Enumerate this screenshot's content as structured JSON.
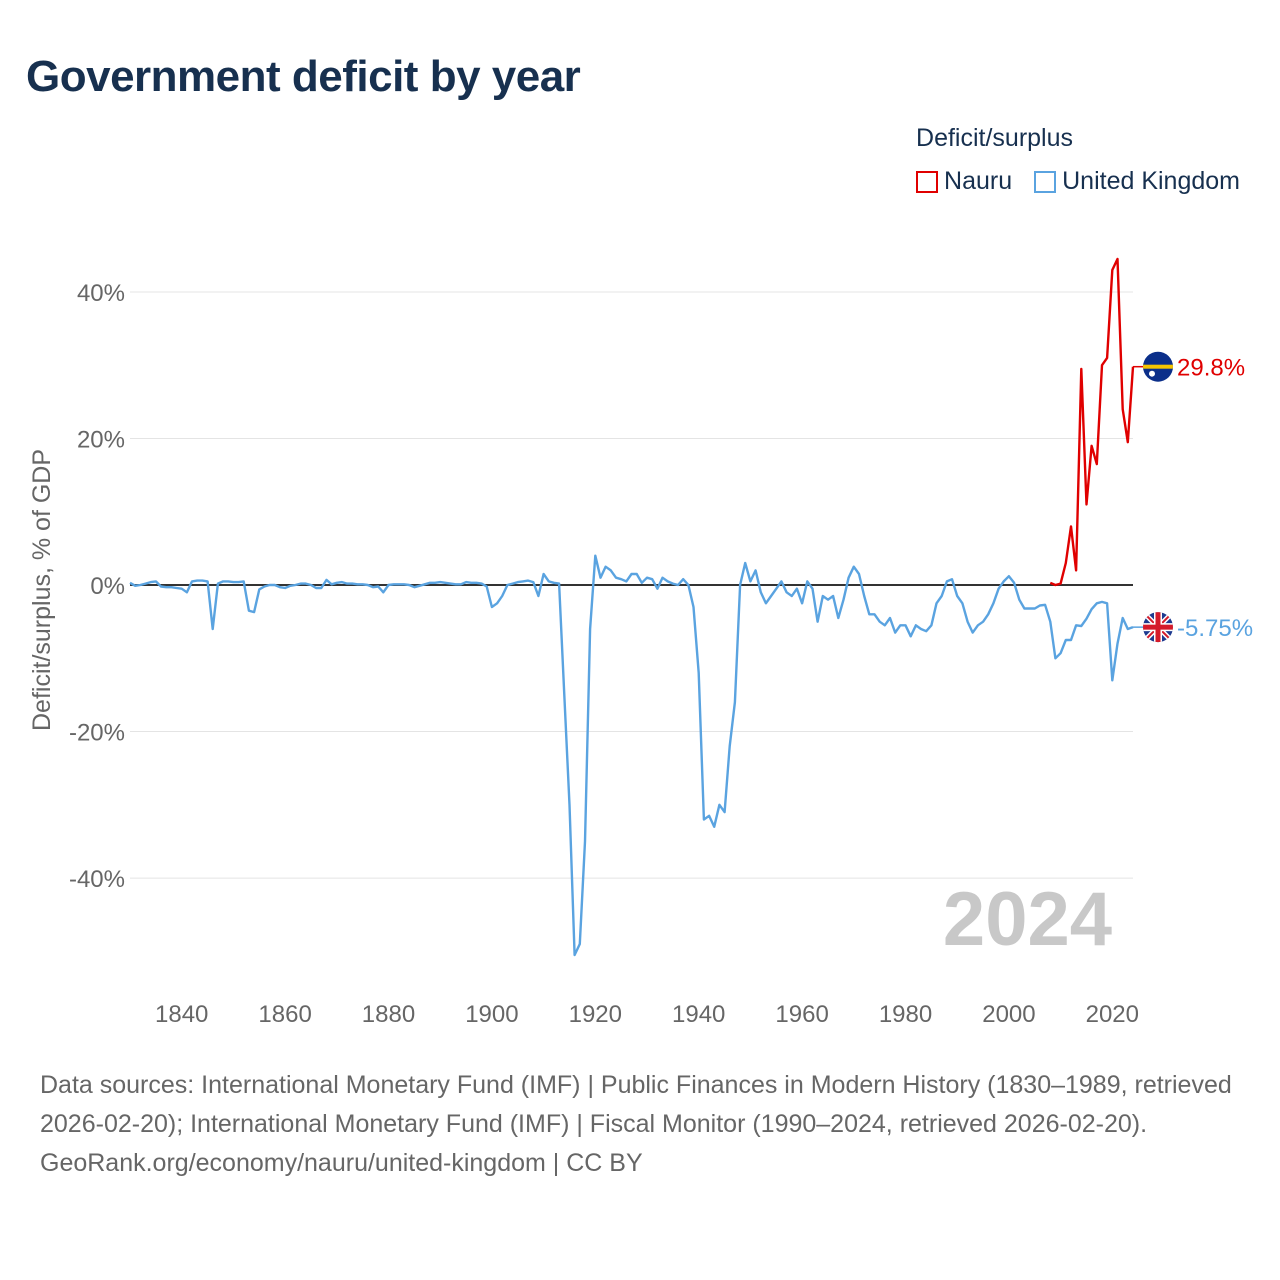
{
  "title": "Government deficit by year",
  "legend": {
    "title": "Deficit/surplus",
    "items": [
      {
        "label": "Nauru",
        "color": "#e00000"
      },
      {
        "label": "United Kingdom",
        "color": "#5aa3e0"
      }
    ]
  },
  "watermark_year": "2024",
  "footer": {
    "sources": "Data sources: International Monetary Fund (IMF) | Public Finances in Modern History (1830–1989, retrieved 2026-02-20); International Monetary Fund (IMF) | Fiscal Monitor (1990–2024, retrieved 2026-02-20).",
    "credit": "GeoRank.org/economy/nauru/united-kingdom | CC BY"
  },
  "chart_data": {
    "type": "line",
    "title": "Government deficit by year",
    "xlabel": "",
    "ylabel": "Deficit/surplus, % of GDP",
    "xlim": [
      1830,
      2024
    ],
    "ylim": [
      -52,
      46
    ],
    "x_ticks": [
      1840,
      1860,
      1880,
      1900,
      1920,
      1940,
      1960,
      1980,
      2000,
      2020
    ],
    "y_ticks": [
      40,
      20,
      0,
      -20,
      -40
    ],
    "y_tick_labels": [
      "40%",
      "20%",
      "0%",
      "-20%",
      "-40%"
    ],
    "zero_line": true,
    "grid": true,
    "series": [
      {
        "name": "Nauru",
        "color": "#e00000",
        "end_label": "29.8%",
        "points": [
          [
            2008,
            0.3
          ],
          [
            2009,
            0
          ],
          [
            2010,
            0.2
          ],
          [
            2011,
            3
          ],
          [
            2012,
            8
          ],
          [
            2013,
            2
          ],
          [
            2014,
            29.5
          ],
          [
            2015,
            11
          ],
          [
            2016,
            19
          ],
          [
            2017,
            16.5
          ],
          [
            2018,
            30
          ],
          [
            2019,
            31
          ],
          [
            2020,
            43
          ],
          [
            2021,
            44.5
          ],
          [
            2022,
            24
          ],
          [
            2023,
            19.5
          ],
          [
            2024,
            29.8
          ]
        ]
      },
      {
        "name": "United Kingdom",
        "color": "#5aa3e0",
        "end_label": "-5.75%",
        "points": [
          [
            1830,
            0.3
          ],
          [
            1831,
            -0.1
          ],
          [
            1832,
            0
          ],
          [
            1833,
            0.2
          ],
          [
            1834,
            0.4
          ],
          [
            1835,
            0.5
          ],
          [
            1836,
            -0.2
          ],
          [
            1837,
            -0.3
          ],
          [
            1838,
            -0.3
          ],
          [
            1839,
            -0.4
          ],
          [
            1840,
            -0.5
          ],
          [
            1841,
            -1
          ],
          [
            1842,
            0.5
          ],
          [
            1843,
            0.6
          ],
          [
            1844,
            0.6
          ],
          [
            1845,
            0.5
          ],
          [
            1846,
            -6
          ],
          [
            1847,
            0.2
          ],
          [
            1848,
            0.5
          ],
          [
            1849,
            0.5
          ],
          [
            1850,
            0.4
          ],
          [
            1851,
            0.4
          ],
          [
            1852,
            0.5
          ],
          [
            1853,
            -3.5
          ],
          [
            1854,
            -3.7
          ],
          [
            1855,
            -0.6
          ],
          [
            1856,
            -0.2
          ],
          [
            1857,
            0
          ],
          [
            1858,
            0
          ],
          [
            1859,
            -0.3
          ],
          [
            1860,
            -0.4
          ],
          [
            1861,
            -0.1
          ],
          [
            1862,
            0
          ],
          [
            1863,
            0.2
          ],
          [
            1864,
            0.2
          ],
          [
            1865,
            0
          ],
          [
            1866,
            -0.4
          ],
          [
            1867,
            -0.4
          ],
          [
            1868,
            0.7
          ],
          [
            1869,
            0.1
          ],
          [
            1870,
            0.3
          ],
          [
            1871,
            0.4
          ],
          [
            1872,
            0.2
          ],
          [
            1873,
            0.2
          ],
          [
            1874,
            0.1
          ],
          [
            1875,
            0.1
          ],
          [
            1876,
            0
          ],
          [
            1877,
            -0.3
          ],
          [
            1878,
            -0.2
          ],
          [
            1879,
            -1
          ],
          [
            1880,
            0
          ],
          [
            1881,
            0.1
          ],
          [
            1882,
            0.1
          ],
          [
            1883,
            0.1
          ],
          [
            1884,
            0
          ],
          [
            1885,
            -0.3
          ],
          [
            1886,
            -0.1
          ],
          [
            1887,
            0.1
          ],
          [
            1888,
            0.3
          ],
          [
            1889,
            0.3
          ],
          [
            1890,
            0.4
          ],
          [
            1891,
            0.3
          ],
          [
            1892,
            0.2
          ],
          [
            1893,
            0.1
          ],
          [
            1894,
            0.1
          ],
          [
            1895,
            0.4
          ],
          [
            1896,
            0.3
          ],
          [
            1897,
            0.3
          ],
          [
            1898,
            0.2
          ],
          [
            1899,
            -0.2
          ],
          [
            1900,
            -3
          ],
          [
            1901,
            -2.5
          ],
          [
            1902,
            -1.5
          ],
          [
            1903,
            0
          ],
          [
            1904,
            0.2
          ],
          [
            1905,
            0.4
          ],
          [
            1906,
            0.5
          ],
          [
            1907,
            0.6
          ],
          [
            1908,
            0.4
          ],
          [
            1909,
            -1.5
          ],
          [
            1910,
            1.5
          ],
          [
            1911,
            0.5
          ],
          [
            1912,
            0.3
          ],
          [
            1913,
            0.2
          ],
          [
            1914,
            -15
          ],
          [
            1915,
            -30
          ],
          [
            1916,
            -50.5
          ],
          [
            1917,
            -49
          ],
          [
            1918,
            -35
          ],
          [
            1919,
            -6
          ],
          [
            1920,
            4
          ],
          [
            1921,
            1
          ],
          [
            1922,
            2.5
          ],
          [
            1923,
            2
          ],
          [
            1924,
            1
          ],
          [
            1925,
            0.8
          ],
          [
            1926,
            0.5
          ],
          [
            1927,
            1.5
          ],
          [
            1928,
            1.5
          ],
          [
            1929,
            0.3
          ],
          [
            1930,
            1
          ],
          [
            1931,
            0.8
          ],
          [
            1932,
            -0.5
          ],
          [
            1933,
            1
          ],
          [
            1934,
            0.5
          ],
          [
            1935,
            0.2
          ],
          [
            1936,
            0
          ],
          [
            1937,
            0.8
          ],
          [
            1938,
            0
          ],
          [
            1939,
            -3
          ],
          [
            1940,
            -12
          ],
          [
            1941,
            -32
          ],
          [
            1942,
            -31.5
          ],
          [
            1943,
            -33
          ],
          [
            1944,
            -30
          ],
          [
            1945,
            -31
          ],
          [
            1946,
            -22
          ],
          [
            1947,
            -16
          ],
          [
            1948,
            0
          ],
          [
            1949,
            3
          ],
          [
            1950,
            0.5
          ],
          [
            1951,
            2
          ],
          [
            1952,
            -1
          ],
          [
            1953,
            -2.5
          ],
          [
            1954,
            -1.5
          ],
          [
            1955,
            -0.5
          ],
          [
            1956,
            0.5
          ],
          [
            1957,
            -1
          ],
          [
            1958,
            -1.5
          ],
          [
            1959,
            -0.5
          ],
          [
            1960,
            -2.5
          ],
          [
            1961,
            0.5
          ],
          [
            1962,
            -0.5
          ],
          [
            1963,
            -5
          ],
          [
            1964,
            -1.5
          ],
          [
            1965,
            -2
          ],
          [
            1966,
            -1.5
          ],
          [
            1967,
            -4.5
          ],
          [
            1968,
            -2
          ],
          [
            1969,
            1
          ],
          [
            1970,
            2.5
          ],
          [
            1971,
            1.5
          ],
          [
            1972,
            -1.5
          ],
          [
            1973,
            -4
          ],
          [
            1974,
            -4
          ],
          [
            1975,
            -5
          ],
          [
            1976,
            -5.5
          ],
          [
            1977,
            -4.5
          ],
          [
            1978,
            -6.5
          ],
          [
            1979,
            -5.5
          ],
          [
            1980,
            -5.5
          ],
          [
            1981,
            -7
          ],
          [
            1982,
            -5.5
          ],
          [
            1983,
            -6
          ],
          [
            1984,
            -6.3
          ],
          [
            1985,
            -5.5
          ],
          [
            1986,
            -2.5
          ],
          [
            1987,
            -1.5
          ],
          [
            1988,
            0.5
          ],
          [
            1989,
            0.8
          ],
          [
            1990,
            -1.5
          ],
          [
            1991,
            -2.5
          ],
          [
            1992,
            -5
          ],
          [
            1993,
            -6.5
          ],
          [
            1994,
            -5.5
          ],
          [
            1995,
            -5
          ],
          [
            1996,
            -4
          ],
          [
            1997,
            -2.5
          ],
          [
            1998,
            -0.5
          ],
          [
            1999,
            0.5
          ],
          [
            2000,
            1.2
          ],
          [
            2001,
            0.3
          ],
          [
            2002,
            -2
          ],
          [
            2003,
            -3.2
          ],
          [
            2004,
            -3.2
          ],
          [
            2005,
            -3.2
          ],
          [
            2006,
            -2.8
          ],
          [
            2007,
            -2.7
          ],
          [
            2008,
            -5
          ],
          [
            2009,
            -10
          ],
          [
            2010,
            -9.3
          ],
          [
            2011,
            -7.5
          ],
          [
            2012,
            -7.5
          ],
          [
            2013,
            -5.5
          ],
          [
            2014,
            -5.6
          ],
          [
            2015,
            -4.6
          ],
          [
            2016,
            -3.3
          ],
          [
            2017,
            -2.5
          ],
          [
            2018,
            -2.3
          ],
          [
            2019,
            -2.5
          ],
          [
            2020,
            -13
          ],
          [
            2021,
            -8
          ],
          [
            2022,
            -4.5
          ],
          [
            2023,
            -6
          ],
          [
            2024,
            -5.75
          ]
        ]
      }
    ]
  }
}
